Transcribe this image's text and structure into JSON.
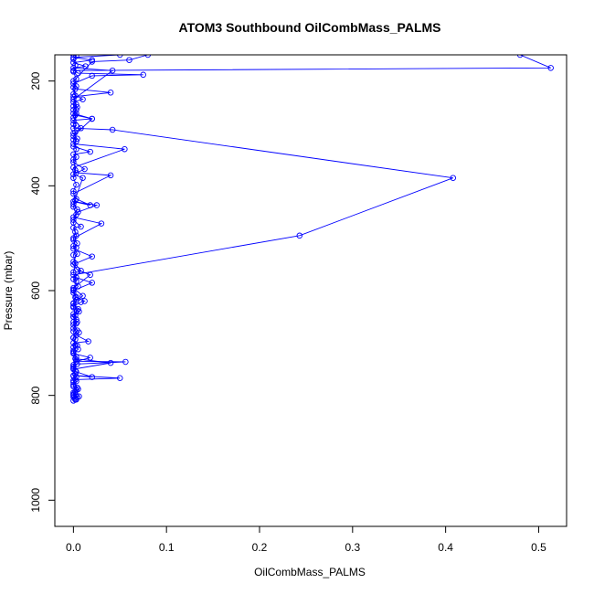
{
  "chart_data": {
    "type": "line",
    "title": "ATOM3 Southbound OilCombMass_PALMS",
    "xlabel": "OilCombMass_PALMS",
    "ylabel": "Pressure (mbar)",
    "xlim": [
      -0.02,
      0.53
    ],
    "ylim": [
      1050,
      150
    ],
    "y_reversed": true,
    "x_ticks": [
      {
        "value": 0.0,
        "label": "0.0"
      },
      {
        "value": 0.1,
        "label": "0.1"
      },
      {
        "value": 0.2,
        "label": "0.2"
      },
      {
        "value": 0.3,
        "label": "0.3"
      },
      {
        "value": 0.4,
        "label": "0.4"
      },
      {
        "value": 0.5,
        "label": "0.5"
      }
    ],
    "y_ticks": [
      {
        "value": 200,
        "label": "200"
      },
      {
        "value": 400,
        "label": "400"
      },
      {
        "value": 600,
        "label": "600"
      },
      {
        "value": 800,
        "label": "800"
      },
      {
        "value": 1000,
        "label": "1000"
      }
    ],
    "grid": false,
    "line_color": "#0000ff",
    "marker": "open-circle",
    "series": [
      {
        "values": [
          [
            0.002,
            808
          ],
          [
            0.004,
            803
          ],
          [
            0.0,
            800
          ],
          [
            0.006,
            802
          ],
          [
            0.003,
            790
          ],
          [
            0.0,
            780
          ],
          [
            0.002,
            770
          ],
          [
            0.05,
            767
          ],
          [
            0.0,
            762
          ],
          [
            0.02,
            765
          ],
          [
            0.003,
            755
          ],
          [
            0.0,
            745
          ],
          [
            0.004,
            740
          ],
          [
            0.056,
            736
          ],
          [
            0.003,
            735
          ],
          [
            0.018,
            728
          ],
          [
            0.0,
            720
          ],
          [
            0.005,
            712
          ],
          [
            0.0,
            700
          ],
          [
            0.016,
            697
          ],
          [
            0.003,
            685
          ],
          [
            0.0,
            672
          ],
          [
            0.004,
            660
          ],
          [
            0.0,
            650
          ],
          [
            0.006,
            640
          ],
          [
            0.0,
            630
          ],
          [
            0.008,
            622
          ],
          [
            0.012,
            620
          ],
          [
            0.003,
            612
          ],
          [
            0.0,
            600
          ],
          [
            0.02,
            585
          ],
          [
            0.003,
            575
          ],
          [
            0.0,
            570
          ],
          [
            0.243,
            495
          ],
          [
            0.408,
            385
          ],
          [
            0.042,
            293
          ],
          [
            0.0,
            290
          ],
          [
            0.003,
            285
          ],
          [
            0.0,
            275
          ],
          [
            0.02,
            272
          ],
          [
            0.002,
            265
          ],
          [
            0.0,
            255
          ],
          [
            0.003,
            245
          ],
          [
            0.0,
            230
          ],
          [
            0.04,
            222
          ],
          [
            0.002,
            215
          ],
          [
            0.0,
            205
          ],
          [
            0.02,
            190
          ],
          [
            0.075,
            188
          ],
          [
            0.005,
            185
          ],
          [
            0.0,
            180
          ],
          [
            0.513,
            175
          ],
          [
            0.48,
            150
          ]
        ]
      },
      {
        "values": [
          [
            0.0,
            810
          ],
          [
            0.002,
            805
          ],
          [
            0.0,
            795
          ],
          [
            0.004,
            785
          ],
          [
            0.0,
            775
          ],
          [
            0.003,
            765
          ],
          [
            0.0,
            750
          ],
          [
            0.04,
            738
          ],
          [
            0.002,
            730
          ],
          [
            0.0,
            715
          ],
          [
            0.004,
            705
          ],
          [
            0.0,
            690
          ],
          [
            0.006,
            680
          ],
          [
            0.0,
            665
          ],
          [
            0.003,
            655
          ],
          [
            0.0,
            645
          ],
          [
            0.005,
            635
          ],
          [
            0.0,
            625
          ],
          [
            0.01,
            610
          ],
          [
            0.0,
            595
          ],
          [
            0.018,
            570
          ],
          [
            0.004,
            560
          ],
          [
            0.0,
            550
          ],
          [
            0.02,
            535
          ],
          [
            0.0,
            520
          ],
          [
            0.004,
            510
          ],
          [
            0.0,
            500
          ],
          [
            0.03,
            472
          ],
          [
            0.0,
            460
          ],
          [
            0.005,
            450
          ],
          [
            0.025,
            437
          ],
          [
            0.0,
            430
          ],
          [
            0.018,
            437
          ],
          [
            0.003,
            425
          ],
          [
            0.0,
            415
          ],
          [
            0.04,
            380
          ],
          [
            0.003,
            375
          ],
          [
            0.0,
            365
          ],
          [
            0.055,
            330
          ],
          [
            0.0,
            320
          ],
          [
            0.004,
            310
          ],
          [
            0.0,
            300
          ],
          [
            0.008,
            290
          ],
          [
            0.0,
            270
          ],
          [
            0.003,
            255
          ],
          [
            0.0,
            240
          ],
          [
            0.01,
            235
          ],
          [
            0.0,
            225
          ],
          [
            0.003,
            210
          ],
          [
            0.0,
            200
          ],
          [
            0.02,
            163
          ],
          [
            0.06,
            160
          ],
          [
            0.08,
            150
          ]
        ]
      },
      {
        "values": [
          [
            0.003,
            808
          ],
          [
            0.0,
            798
          ],
          [
            0.005,
            788
          ],
          [
            0.0,
            772
          ],
          [
            0.002,
            760
          ],
          [
            0.0,
            748
          ],
          [
            0.003,
            732
          ],
          [
            0.0,
            718
          ],
          [
            0.002,
            704
          ],
          [
            0.0,
            690
          ],
          [
            0.004,
            676
          ],
          [
            0.0,
            660
          ],
          [
            0.002,
            648
          ],
          [
            0.0,
            632
          ],
          [
            0.003,
            618
          ],
          [
            0.0,
            604
          ],
          [
            0.005,
            592
          ],
          [
            0.0,
            578
          ],
          [
            0.008,
            562
          ],
          [
            0.0,
            545
          ],
          [
            0.004,
            530
          ],
          [
            0.0,
            515
          ],
          [
            0.003,
            495
          ],
          [
            0.0,
            480
          ],
          [
            0.008,
            478
          ],
          [
            0.0,
            465
          ],
          [
            0.004,
            445
          ],
          [
            0.0,
            435
          ],
          [
            0.01,
            385
          ],
          [
            0.0,
            378
          ],
          [
            0.012,
            368
          ],
          [
            0.0,
            355
          ],
          [
            0.003,
            345
          ],
          [
            0.0,
            340
          ],
          [
            0.018,
            335
          ],
          [
            0.0,
            325
          ],
          [
            0.003,
            315
          ],
          [
            0.0,
            305
          ],
          [
            0.02,
            272
          ],
          [
            0.0,
            262
          ],
          [
            0.004,
            250
          ],
          [
            0.0,
            235
          ],
          [
            0.042,
            180
          ],
          [
            0.0,
            175
          ],
          [
            0.013,
            172
          ],
          [
            0.0,
            165
          ],
          [
            0.02,
            160
          ],
          [
            0.0,
            155
          ],
          [
            0.05,
            150
          ]
        ]
      },
      {
        "values": [
          [
            0.0,
            803
          ],
          [
            0.002,
            793
          ],
          [
            0.0,
            783
          ],
          [
            0.003,
            773
          ],
          [
            0.0,
            763
          ],
          [
            0.002,
            753
          ],
          [
            0.0,
            742
          ],
          [
            0.003,
            727
          ],
          [
            0.0,
            708
          ],
          [
            0.002,
            693
          ],
          [
            0.0,
            678
          ],
          [
            0.003,
            663
          ],
          [
            0.0,
            650
          ],
          [
            0.004,
            638
          ],
          [
            0.0,
            624
          ],
          [
            0.002,
            613
          ],
          [
            0.0,
            598
          ],
          [
            0.003,
            582
          ],
          [
            0.0,
            565
          ],
          [
            0.002,
            548
          ],
          [
            0.0,
            532
          ],
          [
            0.003,
            518
          ],
          [
            0.0,
            503
          ],
          [
            0.002,
            488
          ],
          [
            0.0,
            470
          ],
          [
            0.003,
            455
          ],
          [
            0.0,
            440
          ],
          [
            0.002,
            428
          ],
          [
            0.0,
            410
          ],
          [
            0.003,
            398
          ],
          [
            0.0,
            385
          ],
          [
            0.002,
            370
          ],
          [
            0.0,
            350
          ],
          [
            0.003,
            330
          ],
          [
            0.0,
            312
          ],
          [
            0.002,
            298
          ],
          [
            0.0,
            282
          ],
          [
            0.003,
            262
          ],
          [
            0.0,
            248
          ],
          [
            0.002,
            228
          ],
          [
            0.0,
            212
          ],
          [
            0.003,
            196
          ],
          [
            0.0,
            182
          ],
          [
            0.002,
            170
          ],
          [
            0.0,
            158
          ],
          [
            0.003,
            152
          ],
          [
            0.0,
            150
          ]
        ]
      }
    ]
  }
}
